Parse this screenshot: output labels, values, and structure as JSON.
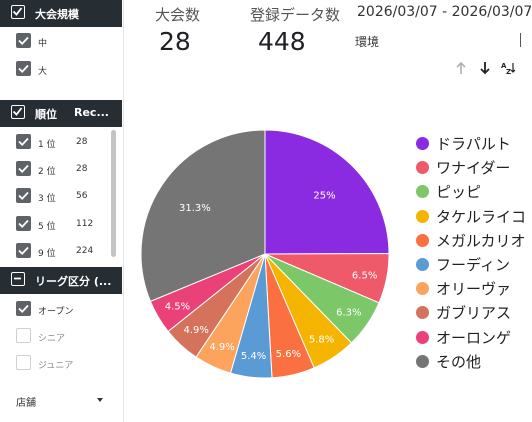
{
  "filters": {
    "tournament_scale": {
      "title": "大会規模",
      "items": [
        {
          "label": "中",
          "checked": true
        },
        {
          "label": "大",
          "checked": true
        }
      ]
    },
    "rank": {
      "title": "順位",
      "count_header": "Rec...",
      "items": [
        {
          "label": "1 位",
          "count": "28",
          "checked": true
        },
        {
          "label": "2 位",
          "count": "28",
          "checked": true
        },
        {
          "label": "3 位",
          "count": "56",
          "checked": true
        },
        {
          "label": "5 位",
          "count": "112",
          "checked": true
        },
        {
          "label": "9 位",
          "count": "224",
          "checked": true
        }
      ]
    },
    "league": {
      "title": "リーグ区分 (...",
      "items": [
        {
          "label": "オープン",
          "checked": true
        },
        {
          "label": "シニア",
          "checked": false
        },
        {
          "label": "ジュニア",
          "checked": false
        }
      ]
    },
    "store": {
      "label": "店舗"
    }
  },
  "scorecards": {
    "tournaments": {
      "label": "大会数",
      "value": "28"
    },
    "records": {
      "label": "登録データ数",
      "value": "448"
    }
  },
  "date_range": "2026/03/07 - 2026/03/07",
  "environment_label": "環境",
  "sort_icons": [
    "arrow-up-icon",
    "arrow-down-icon",
    "sort-az-icon"
  ],
  "colors": {
    "header_bg": "#262d33",
    "checkbox_on": "#5f6368"
  },
  "chart_data": {
    "type": "pie",
    "slices": [
      {
        "name": "ドラパルト",
        "value": 25,
        "label": "25%",
        "color": "#8a2be2"
      },
      {
        "name": "ワナイダー",
        "value": 6.5,
        "label": "6.5%",
        "color": "#ef5a6a"
      },
      {
        "name": "ピッピ",
        "value": 6.3,
        "label": "6.3%",
        "color": "#7cc868"
      },
      {
        "name": "タケルライコ",
        "value": 5.8,
        "label": "5.8%",
        "color": "#f5b400"
      },
      {
        "name": "メガルカリオ",
        "value": 5.6,
        "label": "5.6%",
        "color": "#fb7040"
      },
      {
        "name": "フーディン",
        "value": 5.4,
        "label": "5.4%",
        "color": "#5b9bd5"
      },
      {
        "name": "オリーヴァ",
        "value": 4.9,
        "label": "4.9%",
        "color": "#fca35d"
      },
      {
        "name": "ガブリアス",
        "value": 4.9,
        "label": "4.9%",
        "color": "#d4725c"
      },
      {
        "name": "オーロンゲ",
        "value": 4.5,
        "label": "4.5%",
        "color": "#ea4278"
      },
      {
        "name": "その他",
        "value": 31.3,
        "label": "31.3%",
        "color": "#757575"
      }
    ],
    "legend_position": "right"
  }
}
